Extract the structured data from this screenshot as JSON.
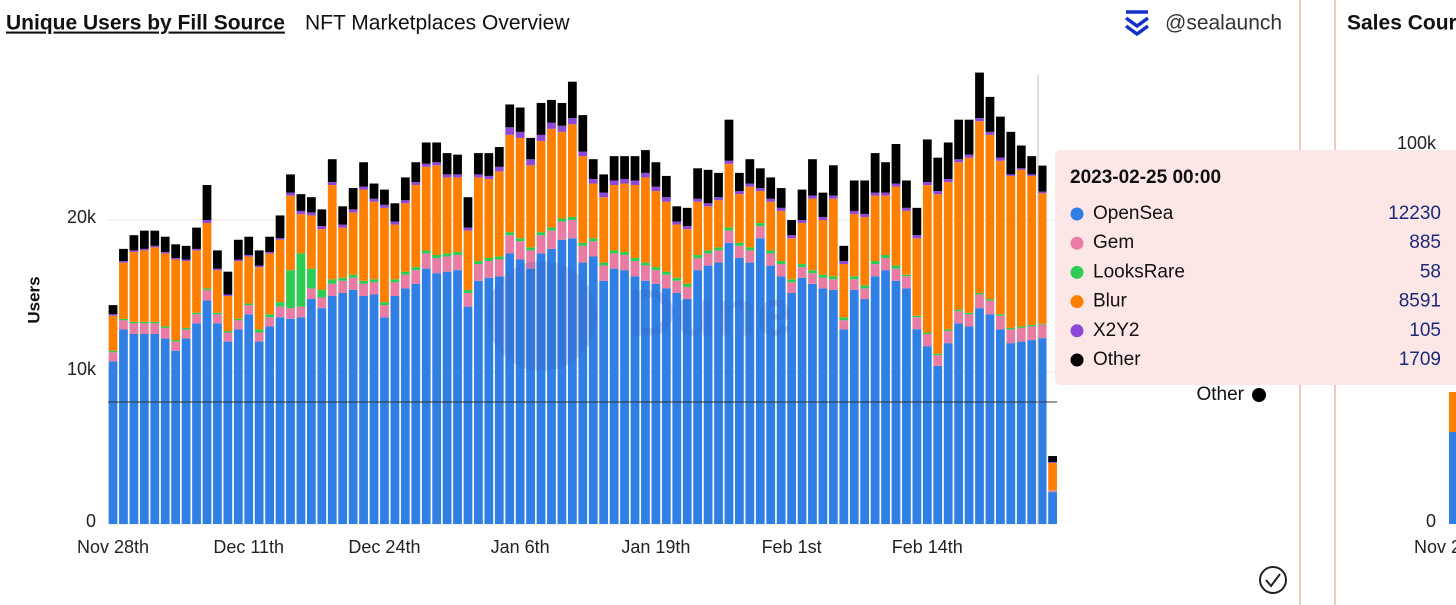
{
  "header": {
    "title": "Unique Users by Fill Source",
    "subtitle": "NFT Marketplaces Overview",
    "author": "@sealaunch"
  },
  "chart_data": {
    "type": "stacked_bar",
    "y_label": "Users",
    "watermark": "Dune",
    "categories": [
      "Nov 28th",
      null,
      null,
      null,
      null,
      null,
      null,
      null,
      null,
      null,
      null,
      null,
      null,
      "Dec 11th",
      null,
      null,
      null,
      null,
      null,
      null,
      null,
      null,
      null,
      null,
      null,
      null,
      "Dec 24th",
      null,
      null,
      null,
      null,
      null,
      null,
      null,
      null,
      null,
      null,
      null,
      null,
      "Jan 6th",
      null,
      null,
      null,
      null,
      null,
      null,
      null,
      null,
      null,
      null,
      null,
      null,
      "Jan 19th",
      null,
      null,
      null,
      null,
      null,
      null,
      null,
      null,
      null,
      null,
      null,
      null,
      "Feb 1st",
      null,
      null,
      null,
      null,
      null,
      null,
      null,
      null,
      null,
      null,
      null,
      null,
      "Feb 14th",
      null,
      null,
      null,
      null,
      null,
      null,
      null,
      null,
      null,
      null,
      null,
      null
    ],
    "ylim": [
      0,
      30000
    ],
    "yticks": [
      0,
      {
        "value": 10000,
        "label": "10k"
      },
      {
        "value": 20000,
        "label": "20k"
      }
    ],
    "series": [
      {
        "name": "OpenSea",
        "color": "#2f7fe4",
        "values": [
          10700,
          12800,
          12500,
          12500,
          12500,
          12200,
          11400,
          12200,
          13200,
          14700,
          13200,
          12000,
          12800,
          13800,
          12000,
          13000,
          13600,
          13500,
          13600,
          14800,
          14200,
          15000,
          15200,
          15400,
          15000,
          15100,
          13600,
          15000,
          15500,
          15800,
          16800,
          16500,
          16600,
          16700,
          14300,
          16000,
          16200,
          16300,
          17800,
          17400,
          16800,
          17800,
          18100,
          18700,
          18800,
          17200,
          17600,
          16000,
          16800,
          16700,
          16300,
          16000,
          15800,
          15500,
          15200,
          14800,
          16700,
          17000,
          17200,
          18500,
          17500,
          17200,
          18800,
          17000,
          16300,
          15200,
          16200,
          15800,
          15500,
          15400,
          12800,
          15400,
          14800,
          16300,
          16700,
          16000,
          15500,
          12800,
          11700,
          10400,
          11900,
          13200,
          13000,
          14200,
          13800,
          12800,
          11900,
          12000,
          12100,
          12230,
          2100
        ]
      },
      {
        "name": "Gem",
        "color": "#ea7ba3",
        "values": [
          600,
          600,
          700,
          700,
          700,
          700,
          600,
          600,
          600,
          700,
          600,
          600,
          600,
          600,
          600,
          600,
          700,
          700,
          700,
          700,
          700,
          800,
          800,
          800,
          800,
          800,
          800,
          900,
          900,
          900,
          1000,
          1000,
          1000,
          1000,
          900,
          1100,
          1100,
          1100,
          1200,
          1200,
          1200,
          1200,
          1200,
          1200,
          1200,
          1100,
          1000,
          1000,
          1000,
          1000,
          1000,
          1000,
          900,
          900,
          800,
          800,
          800,
          800,
          800,
          800,
          800,
          800,
          800,
          800,
          800,
          700,
          700,
          700,
          700,
          700,
          600,
          700,
          700,
          800,
          800,
          800,
          800,
          800,
          800,
          700,
          800,
          800,
          800,
          900,
          900,
          900,
          900,
          900,
          900,
          885,
          100
        ]
      },
      {
        "name": "LooksRare",
        "color": "#2ecc55",
        "values": [
          100,
          100,
          100,
          100,
          100,
          100,
          100,
          100,
          100,
          100,
          100,
          100,
          100,
          100,
          200,
          200,
          300,
          2500,
          3500,
          1300,
          500,
          300,
          200,
          200,
          200,
          200,
          200,
          200,
          200,
          200,
          200,
          200,
          200,
          200,
          200,
          200,
          200,
          200,
          200,
          200,
          200,
          200,
          200,
          200,
          200,
          200,
          200,
          200,
          200,
          200,
          200,
          200,
          200,
          200,
          200,
          200,
          200,
          200,
          200,
          200,
          200,
          200,
          200,
          200,
          200,
          200,
          200,
          200,
          200,
          200,
          200,
          200,
          200,
          200,
          200,
          200,
          100,
          100,
          100,
          100,
          100,
          100,
          100,
          100,
          100,
          100,
          100,
          100,
          100,
          58,
          20
        ]
      },
      {
        "name": "Blur",
        "color": "#ff8000",
        "values": [
          2300,
          3700,
          4600,
          4700,
          4900,
          4800,
          5300,
          4400,
          4100,
          4300,
          2800,
          2300,
          3800,
          3100,
          4100,
          4000,
          4100,
          4900,
          2600,
          3500,
          4000,
          6200,
          3300,
          4100,
          6000,
          5100,
          6200,
          3600,
          4500,
          5400,
          5500,
          5900,
          5000,
          4900,
          3900,
          5500,
          5200,
          5600,
          6400,
          6600,
          5400,
          6000,
          6500,
          5700,
          6100,
          5700,
          3600,
          4300,
          4300,
          4500,
          4800,
          5600,
          5000,
          4600,
          3500,
          3600,
          3500,
          2900,
          3100,
          4200,
          3200,
          4000,
          2100,
          3200,
          3300,
          2700,
          2700,
          4700,
          3600,
          5100,
          3500,
          4100,
          4500,
          4300,
          3900,
          5200,
          4200,
          5100,
          9700,
          10500,
          9700,
          9700,
          10200,
          11300,
          10800,
          10100,
          10000,
          10300,
          9800,
          8591,
          1800
        ]
      },
      {
        "name": "X2Y2",
        "color": "#8e48d8",
        "values": [
          100,
          100,
          100,
          100,
          100,
          100,
          100,
          100,
          100,
          200,
          100,
          100,
          100,
          100,
          100,
          100,
          100,
          200,
          200,
          200,
          200,
          200,
          200,
          200,
          200,
          200,
          200,
          200,
          200,
          200,
          200,
          200,
          200,
          200,
          200,
          200,
          200,
          300,
          500,
          400,
          400,
          400,
          400,
          400,
          400,
          300,
          300,
          300,
          300,
          300,
          300,
          300,
          300,
          300,
          200,
          200,
          200,
          200,
          200,
          200,
          200,
          200,
          200,
          200,
          200,
          200,
          200,
          200,
          200,
          200,
          200,
          200,
          200,
          200,
          200,
          200,
          200,
          200,
          200,
          200,
          200,
          200,
          200,
          200,
          200,
          200,
          100,
          100,
          100,
          105,
          50
        ]
      },
      {
        "name": "Other",
        "color": "#000000",
        "values": [
          600,
          800,
          1000,
          1200,
          1000,
          1000,
          900,
          900,
          1400,
          2300,
          1200,
          1500,
          1300,
          1200,
          1000,
          1000,
          1500,
          1200,
          1100,
          1000,
          1100,
          1500,
          1200,
          1400,
          1600,
          1000,
          1000,
          1200,
          1500,
          1300,
          1400,
          1300,
          1400,
          1300,
          2000,
          1400,
          1500,
          1300,
          1500,
          1600,
          1400,
          2100,
          1500,
          1500,
          2400,
          2400,
          1300,
          1200,
          1600,
          1500,
          1600,
          1500,
          1600,
          1400,
          1000,
          1200,
          2000,
          2200,
          1600,
          2700,
          1200,
          1600,
          1300,
          1400,
          1300,
          1000,
          2000,
          2400,
          1600,
          2000,
          1000,
          2000,
          2200,
          2600,
          2000,
          2600,
          1800,
          1800,
          2800,
          2200,
          2400,
          2600,
          2300,
          3000,
          2300,
          2700,
          2800,
          1500,
          1200,
          1709,
          400
        ]
      }
    ],
    "tooltip": {
      "title": "2023-02-25 00:00"
    }
  },
  "right_panel": {
    "title": "Sales Cour",
    "yticks": [
      "100k",
      "0"
    ],
    "x_label": "Nov 2"
  }
}
